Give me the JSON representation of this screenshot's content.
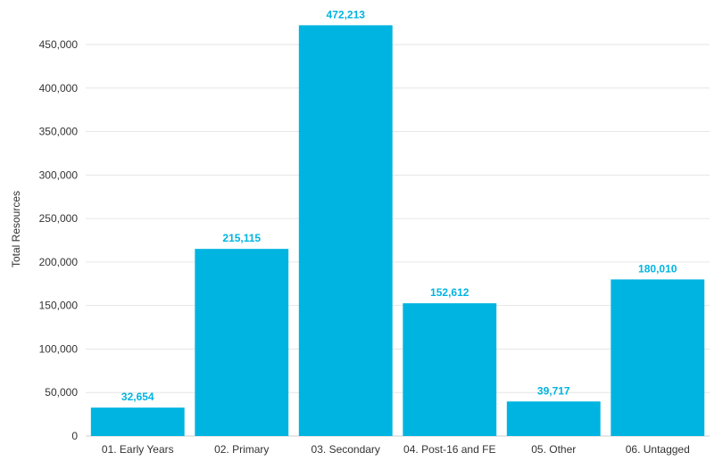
{
  "chart_data": {
    "type": "bar",
    "title": "",
    "xlabel": "",
    "ylabel": "Total Resources",
    "categories": [
      "01. Early Years",
      "02. Primary",
      "03. Secondary",
      "04. Post-16 and FE",
      "05. Other",
      "06. Untagged"
    ],
    "values": [
      32654,
      215115,
      472213,
      152612,
      39717,
      180010
    ],
    "value_labels": [
      "32,654",
      "215,115",
      "472,213",
      "152,612",
      "39,717",
      "180,010"
    ],
    "ylim": [
      0,
      450000
    ],
    "yticks": [
      0,
      50000,
      100000,
      150000,
      200000,
      250000,
      300000,
      350000,
      400000,
      450000
    ],
    "ytick_labels": [
      "0",
      "50,000",
      "100,000",
      "150,000",
      "200,000",
      "250,000",
      "300,000",
      "350,000",
      "400,000",
      "450,000"
    ],
    "grid": true,
    "legend": "none",
    "colors": {
      "bar": "#00b4e1",
      "label": "#00b4e1",
      "grid": "#e6e6e6",
      "axis": "#cccccc"
    }
  }
}
